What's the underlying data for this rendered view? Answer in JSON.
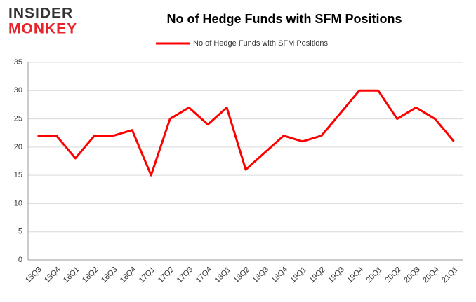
{
  "logo": {
    "line1": "INSIDER",
    "line2": "MONKEY"
  },
  "chart_data": {
    "type": "line",
    "title": "No of Hedge Funds with SFM Positions",
    "categories": [
      "15Q3",
      "15Q4",
      "16Q1",
      "16Q2",
      "16Q3",
      "16Q4",
      "17Q1",
      "17Q2",
      "17Q3",
      "17Q4",
      "18Q1",
      "18Q2",
      "18Q3",
      "18Q4",
      "19Q1",
      "19Q2",
      "19Q3",
      "19Q4",
      "20Q1",
      "20Q2",
      "20Q3",
      "20Q4",
      "21Q1"
    ],
    "series": [
      {
        "name": "No of Hedge Funds with SFM Positions",
        "color": "#ff0000",
        "values": [
          22,
          22,
          18,
          22,
          22,
          23,
          15,
          25,
          27,
          24,
          27,
          16,
          19,
          22,
          21,
          22,
          26,
          30,
          30,
          25,
          27,
          25,
          21
        ]
      }
    ],
    "ylim": [
      0,
      35
    ],
    "yticks": [
      0,
      5,
      10,
      15,
      20,
      25,
      30,
      35
    ],
    "grid": true,
    "legend": "top"
  }
}
